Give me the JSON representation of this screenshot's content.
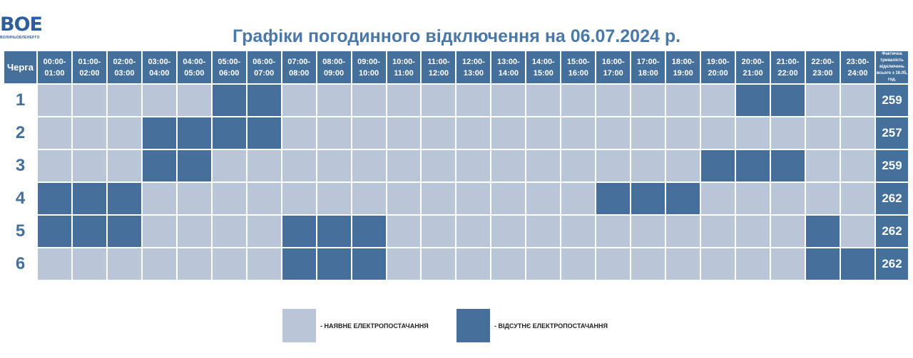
{
  "logo": {
    "mark": "ВОЕ",
    "subtitle": "ВОЛИНЬОБЛЕНЕРГО"
  },
  "title": "Графіки погодинного відключення на 06.07.2024 р.",
  "header": {
    "queue_label": "Черга",
    "hours": [
      "00:00-01:00",
      "01:00-02:00",
      "02:00-03:00",
      "03:00-04:00",
      "04:00-05:00",
      "05:00-06:00",
      "06:00-07:00",
      "07:00-08:00",
      "08:00-09:00",
      "09:00-10:00",
      "10:00-11:00",
      "11:00-12:00",
      "12:00-13:00",
      "13:00-14:00",
      "14:00-15:00",
      "15:00-16:00",
      "16:00-17:00",
      "17:00-18:00",
      "18:00-19:00",
      "19:00-20:00",
      "20:00-21:00",
      "21:00-22:00",
      "22:00-23:00",
      "23:00-24:00"
    ],
    "total_label": "Фактична тривалість відключень всього з 16.05, год."
  },
  "rows": [
    {
      "queue": "1",
      "off_hours": [
        5,
        6,
        20,
        21
      ],
      "total": "259"
    },
    {
      "queue": "2",
      "off_hours": [
        3,
        4,
        5,
        6
      ],
      "total": "257"
    },
    {
      "queue": "3",
      "off_hours": [
        3,
        4,
        19,
        20,
        21
      ],
      "total": "259"
    },
    {
      "queue": "4",
      "off_hours": [
        0,
        1,
        2,
        16,
        17,
        18
      ],
      "total": "262"
    },
    {
      "queue": "5",
      "off_hours": [
        0,
        1,
        2,
        7,
        8,
        9,
        22
      ],
      "total": "262"
    },
    {
      "queue": "6",
      "off_hours": [
        7,
        8,
        9,
        22,
        23
      ],
      "total": "262"
    }
  ],
  "legend": {
    "on_label": "- НАЯВНЕ ЕЛЕКТРОПОСТАЧАННЯ",
    "off_label": "- ВІДСУТНЄ ЕЛЕКТРОПОСТАЧАННЯ"
  },
  "colors": {
    "power_on": "#b8c6d7",
    "power_off": "#46709b",
    "header": "#44709b",
    "title": "#4a78a8"
  }
}
